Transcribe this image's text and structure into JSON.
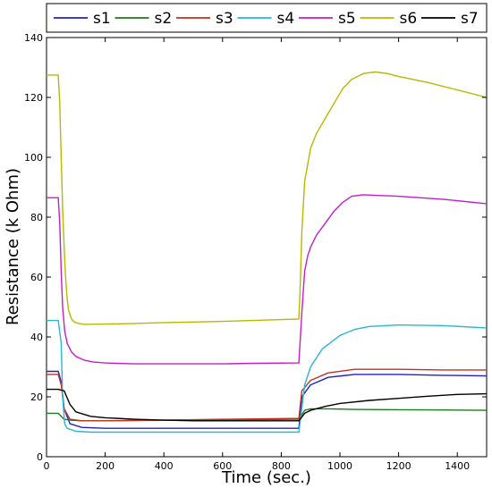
{
  "chart_data": {
    "type": "line",
    "xlabel": "Time (sec.)",
    "ylabel": "Resistance (k Ohm)",
    "xlim": [
      0,
      1500
    ],
    "ylim": [
      0,
      140
    ],
    "xticks": [
      0,
      200,
      400,
      600,
      800,
      1000,
      1200,
      1400
    ],
    "yticks": [
      0,
      20,
      40,
      60,
      80,
      100,
      120,
      140
    ],
    "grid": false,
    "legend_position": "top",
    "series": [
      {
        "name": "s1",
        "color": "#1f1fd0",
        "x": [
          0,
          40,
          50,
          60,
          80,
          120,
          200,
          400,
          600,
          860,
          870,
          900,
          960,
          1050,
          1200,
          1350,
          1500
        ],
        "y": [
          28.5,
          28.5,
          25,
          16,
          11,
          9.8,
          9.5,
          9.5,
          9.5,
          9.5,
          20,
          24,
          26.5,
          27.5,
          27.5,
          27.2,
          27
        ]
      },
      {
        "name": "s2",
        "color": "#1e7a1e",
        "x": [
          0,
          40,
          50,
          60,
          80,
          120,
          200,
          400,
          600,
          860,
          880,
          900,
          960,
          1050,
          1200,
          1350,
          1500
        ],
        "y": [
          14.5,
          14.5,
          13.5,
          12.5,
          12.2,
          12,
          12,
          12.2,
          12.3,
          12.5,
          15.5,
          16,
          16,
          15.8,
          15.7,
          15.6,
          15.5
        ]
      },
      {
        "name": "s3",
        "color": "#c43020",
        "x": [
          0,
          40,
          50,
          60,
          80,
          120,
          200,
          400,
          600,
          860,
          870,
          900,
          960,
          1050,
          1200,
          1350,
          1500
        ],
        "y": [
          27.5,
          27.5,
          24,
          16,
          12.5,
          12,
          12,
          12.2,
          12.5,
          12.8,
          22,
          25.5,
          28,
          29.2,
          29.2,
          29,
          29
        ]
      },
      {
        "name": "s4",
        "color": "#2ab4d6",
        "x": [
          0,
          40,
          50,
          55,
          62,
          70,
          100,
          150,
          200,
          400,
          600,
          860,
          880,
          900,
          940,
          1000,
          1050,
          1100,
          1200,
          1350,
          1500
        ],
        "y": [
          45.5,
          45.5,
          38,
          20,
          11,
          9.5,
          8.5,
          8.2,
          8.2,
          8.2,
          8.2,
          8.2,
          24,
          30,
          36,
          40.5,
          42.5,
          43.5,
          44,
          43.8,
          43
        ]
      },
      {
        "name": "s5",
        "color": "#c51ec5",
        "x": [
          0,
          40,
          45,
          50,
          55,
          62,
          70,
          85,
          100,
          130,
          160,
          200,
          300,
          400,
          500,
          600,
          700,
          860,
          870,
          880,
          890,
          900,
          920,
          950,
          980,
          1010,
          1040,
          1080,
          1200,
          1350,
          1500
        ],
        "y": [
          86.5,
          86.5,
          78,
          62,
          50,
          42,
          38,
          35,
          33.5,
          32.2,
          31.6,
          31.3,
          31,
          31,
          31,
          31,
          31.2,
          31.3,
          48,
          62,
          67,
          70,
          74,
          78,
          82,
          85,
          87,
          87.5,
          87,
          86,
          84.5
        ]
      },
      {
        "name": "s6",
        "color": "#b8b800",
        "x": [
          0,
          40,
          45,
          50,
          55,
          60,
          65,
          70,
          75,
          85,
          95,
          110,
          130,
          200,
          300,
          400,
          500,
          600,
          700,
          800,
          860,
          864,
          870,
          880,
          900,
          920,
          950,
          980,
          1010,
          1040,
          1080,
          1120,
          1160,
          1200,
          1300,
          1400,
          1500
        ],
        "y": [
          127.5,
          127.5,
          118,
          100,
          83,
          70,
          60,
          53,
          49,
          46,
          45,
          44.5,
          44.2,
          44.3,
          44.5,
          44.8,
          45,
          45.2,
          45.5,
          45.8,
          46,
          55,
          75,
          92,
          103,
          108,
          113,
          118,
          123,
          126,
          128,
          128.5,
          128,
          127,
          125,
          122.5,
          120
        ]
      },
      {
        "name": "s7",
        "color": "#000000",
        "x": [
          0,
          40,
          60,
          80,
          100,
          150,
          200,
          300,
          400,
          500,
          600,
          700,
          860,
          880,
          900,
          950,
          1000,
          1100,
          1200,
          1300,
          1400,
          1500
        ],
        "y": [
          22.5,
          22.5,
          22,
          17.5,
          15,
          13.5,
          13,
          12.5,
          12.2,
          12,
          12,
          12,
          12,
          14.5,
          15.5,
          16.8,
          17.8,
          18.8,
          19.5,
          20.2,
          20.8,
          21
        ]
      }
    ]
  }
}
